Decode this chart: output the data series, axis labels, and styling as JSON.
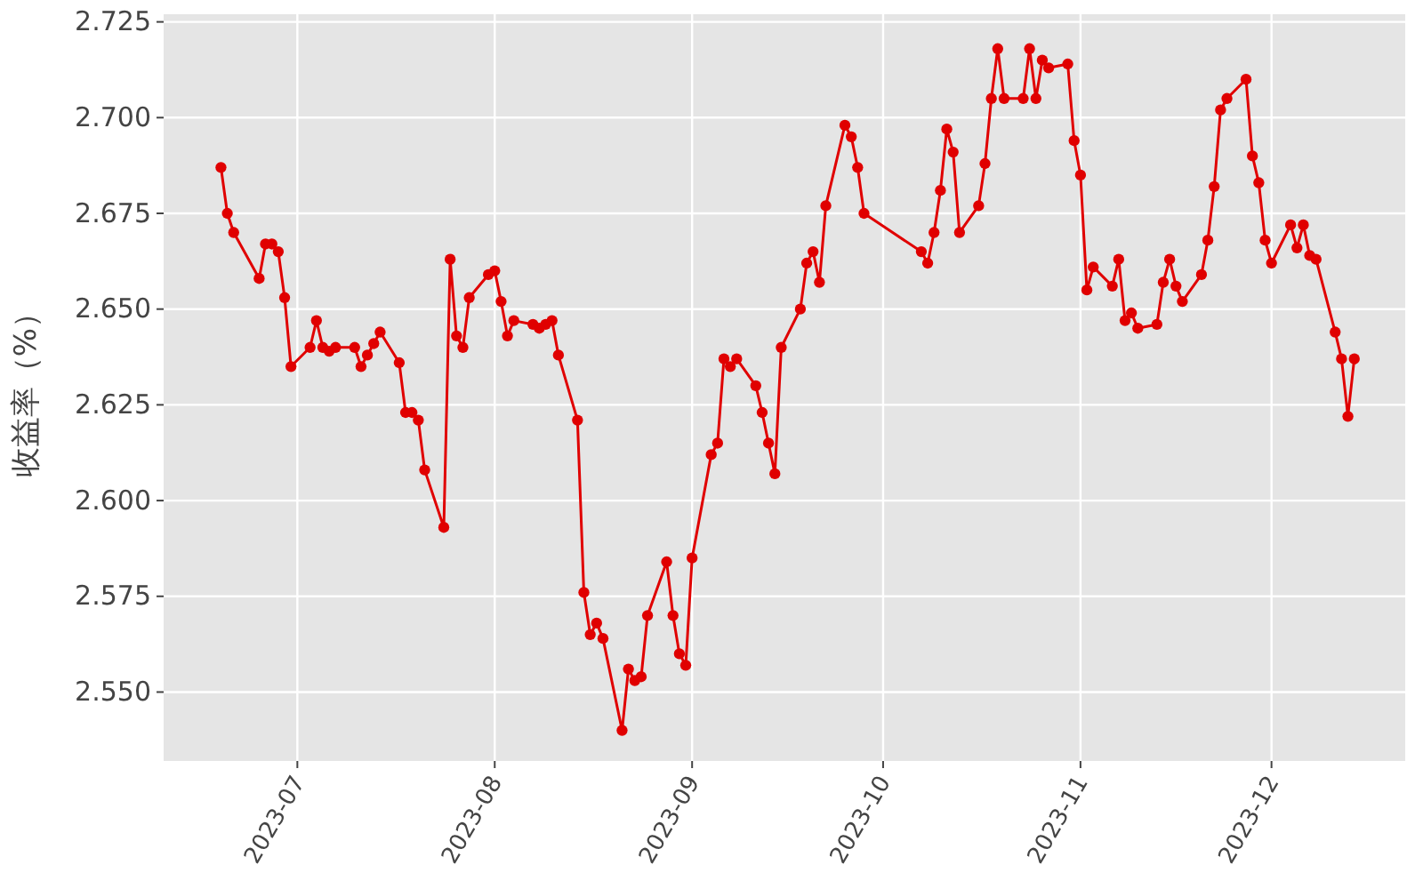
{
  "chart_data": {
    "type": "line",
    "ylabel": "收益率（%）",
    "marker": "circle",
    "line_style": "solid",
    "grid": true,
    "xlim": [
      "2023-06-10",
      "2023-12-22"
    ],
    "xticks": [
      {
        "value": "2023-07-01",
        "label": "2023-07"
      },
      {
        "value": "2023-08-01",
        "label": "2023-08"
      },
      {
        "value": "2023-09-01",
        "label": "2023-09"
      },
      {
        "value": "2023-10-01",
        "label": "2023-10"
      },
      {
        "value": "2023-11-01",
        "label": "2023-11"
      },
      {
        "value": "2023-12-01",
        "label": "2023-12"
      }
    ],
    "ylim": [
      2.532,
      2.727
    ],
    "yticks": [
      {
        "value": 2.55,
        "label": "2.550"
      },
      {
        "value": 2.575,
        "label": "2.575"
      },
      {
        "value": 2.6,
        "label": "2.600"
      },
      {
        "value": 2.625,
        "label": "2.625"
      },
      {
        "value": 2.65,
        "label": "2.650"
      },
      {
        "value": 2.675,
        "label": "2.675"
      },
      {
        "value": 2.7,
        "label": "2.700"
      },
      {
        "value": 2.725,
        "label": "2.725"
      }
    ],
    "x": [
      "2023-06-19",
      "2023-06-20",
      "2023-06-21",
      "2023-06-25",
      "2023-06-26",
      "2023-06-27",
      "2023-06-28",
      "2023-06-29",
      "2023-06-30",
      "2023-07-03",
      "2023-07-04",
      "2023-07-05",
      "2023-07-06",
      "2023-07-07",
      "2023-07-10",
      "2023-07-11",
      "2023-07-12",
      "2023-07-13",
      "2023-07-14",
      "2023-07-17",
      "2023-07-18",
      "2023-07-19",
      "2023-07-20",
      "2023-07-21",
      "2023-07-24",
      "2023-07-25",
      "2023-07-26",
      "2023-07-27",
      "2023-07-28",
      "2023-07-31",
      "2023-08-01",
      "2023-08-02",
      "2023-08-03",
      "2023-08-04",
      "2023-08-07",
      "2023-08-08",
      "2023-08-09",
      "2023-08-10",
      "2023-08-11",
      "2023-08-14",
      "2023-08-15",
      "2023-08-16",
      "2023-08-17",
      "2023-08-18",
      "2023-08-21",
      "2023-08-22",
      "2023-08-23",
      "2023-08-24",
      "2023-08-25",
      "2023-08-28",
      "2023-08-29",
      "2023-08-30",
      "2023-08-31",
      "2023-09-01",
      "2023-09-04",
      "2023-09-05",
      "2023-09-06",
      "2023-09-07",
      "2023-09-08",
      "2023-09-11",
      "2023-09-12",
      "2023-09-13",
      "2023-09-14",
      "2023-09-15",
      "2023-09-18",
      "2023-09-19",
      "2023-09-20",
      "2023-09-21",
      "2023-09-22",
      "2023-09-25",
      "2023-09-26",
      "2023-09-27",
      "2023-09-28",
      "2023-10-07",
      "2023-10-08",
      "2023-10-09",
      "2023-10-10",
      "2023-10-11",
      "2023-10-12",
      "2023-10-13",
      "2023-10-16",
      "2023-10-17",
      "2023-10-18",
      "2023-10-19",
      "2023-10-20",
      "2023-10-23",
      "2023-10-24",
      "2023-10-25",
      "2023-10-26",
      "2023-10-27",
      "2023-10-30",
      "2023-10-31",
      "2023-11-01",
      "2023-11-02",
      "2023-11-03",
      "2023-11-06",
      "2023-11-07",
      "2023-11-08",
      "2023-11-09",
      "2023-11-10",
      "2023-11-13",
      "2023-11-14",
      "2023-11-15",
      "2023-11-16",
      "2023-11-17",
      "2023-11-20",
      "2023-11-21",
      "2023-11-22",
      "2023-11-23",
      "2023-11-24",
      "2023-11-27",
      "2023-11-28",
      "2023-11-29",
      "2023-11-30",
      "2023-12-01",
      "2023-12-04",
      "2023-12-05",
      "2023-12-06",
      "2023-12-07",
      "2023-12-08",
      "2023-12-11",
      "2023-12-12",
      "2023-12-13",
      "2023-12-14"
    ],
    "series": [
      {
        "color": "#e00000",
        "values": [
          2.687,
          2.675,
          2.67,
          2.658,
          2.667,
          2.667,
          2.665,
          2.653,
          2.635,
          2.64,
          2.647,
          2.64,
          2.639,
          2.64,
          2.64,
          2.635,
          2.638,
          2.641,
          2.644,
          2.636,
          2.623,
          2.623,
          2.621,
          2.608,
          2.593,
          2.663,
          2.643,
          2.64,
          2.653,
          2.659,
          2.66,
          2.652,
          2.643,
          2.647,
          2.646,
          2.645,
          2.646,
          2.647,
          2.638,
          2.621,
          2.576,
          2.565,
          2.568,
          2.564,
          2.54,
          2.556,
          2.553,
          2.554,
          2.57,
          2.584,
          2.57,
          2.56,
          2.557,
          2.585,
          2.612,
          2.615,
          2.637,
          2.635,
          2.637,
          2.63,
          2.623,
          2.615,
          2.607,
          2.64,
          2.65,
          2.662,
          2.665,
          2.657,
          2.677,
          2.698,
          2.695,
          2.687,
          2.675,
          2.665,
          2.662,
          2.67,
          2.681,
          2.697,
          2.691,
          2.67,
          2.677,
          2.688,
          2.705,
          2.718,
          2.705,
          2.705,
          2.718,
          2.705,
          2.715,
          2.713,
          2.714,
          2.694,
          2.685,
          2.655,
          2.661,
          2.656,
          2.663,
          2.647,
          2.649,
          2.645,
          2.646,
          2.657,
          2.663,
          2.656,
          2.652,
          2.659,
          2.668,
          2.682,
          2.702,
          2.705,
          2.71,
          2.69,
          2.683,
          2.668,
          2.662,
          2.672,
          2.666,
          2.672,
          2.664,
          2.663,
          2.644,
          2.637,
          2.622,
          2.637
        ]
      }
    ]
  }
}
